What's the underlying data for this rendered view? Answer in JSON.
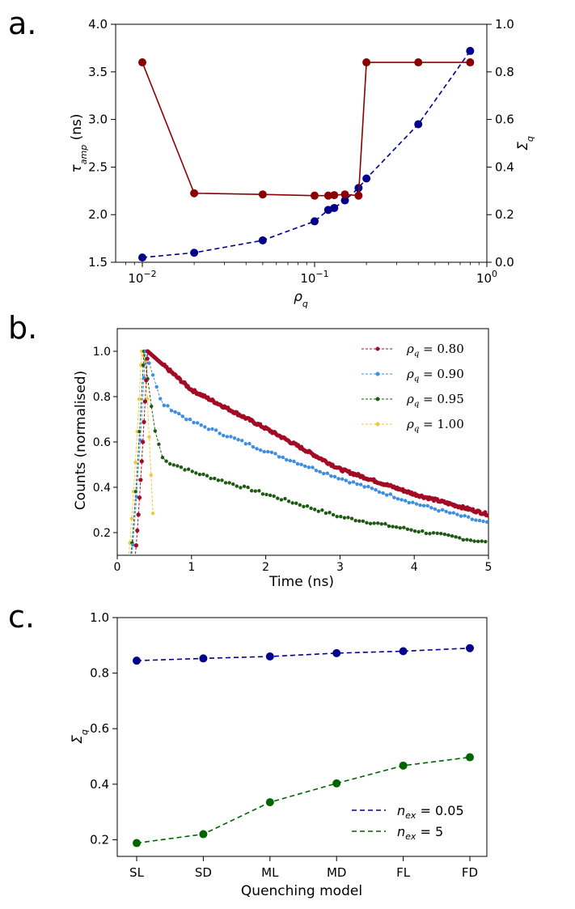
{
  "chart_data": [
    {
      "panel": "a.",
      "type": "line",
      "x_scale": "log",
      "xlim": [
        0.007,
        1.0
      ],
      "xlabel_symbol": "ρ",
      "xlabel_sub": "q",
      "x_ticks": [
        {
          "value": 0.01,
          "base": "10",
          "exp": "−2"
        },
        {
          "value": 0.1,
          "base": "10",
          "exp": "−1"
        },
        {
          "value": 1.0,
          "base": "10",
          "exp": "0"
        }
      ],
      "y_left": {
        "label_symbol": "τ",
        "label_sub": "amp",
        "label_unit": " (ns)",
        "lim": [
          1.5,
          4.0
        ],
        "ticks": [
          "1.5",
          "2.0",
          "2.5",
          "3.0",
          "3.5",
          "4.0"
        ]
      },
      "y_right": {
        "label_symbol": "Σ",
        "label_sub": "q",
        "lim": [
          0.0,
          1.0
        ],
        "ticks": [
          "0.0",
          "0.2",
          "0.4",
          "0.6",
          "0.8",
          "1.0"
        ]
      },
      "series": [
        {
          "name": "tau_amp",
          "axis": "left",
          "style": "dashed",
          "color": "#00008b",
          "x": [
            0.01,
            0.02,
            0.05,
            0.1,
            0.12,
            0.13,
            0.15,
            0.18,
            0.2,
            0.4,
            0.8
          ],
          "y": [
            1.55,
            1.6,
            1.73,
            1.93,
            2.05,
            2.07,
            2.15,
            2.28,
            2.38,
            2.95,
            3.72
          ]
        },
        {
          "name": "sigma_q",
          "axis": "right",
          "style": "solid",
          "color": "#8b0000",
          "x": [
            0.01,
            0.02,
            0.05,
            0.1,
            0.12,
            0.13,
            0.15,
            0.18,
            0.2,
            0.4,
            0.8
          ],
          "y": [
            0.84,
            0.29,
            0.285,
            0.28,
            0.28,
            0.282,
            0.285,
            0.28,
            0.84,
            0.84,
            0.84
          ]
        }
      ]
    },
    {
      "panel": "b.",
      "type": "line",
      "xlabel": "Time (ns)",
      "ylabel": "Counts (normalised)",
      "xlim": [
        0,
        5
      ],
      "ylim": [
        0.1,
        1.1
      ],
      "x_ticks": [
        "0",
        "1",
        "2",
        "3",
        "4",
        "5"
      ],
      "y_ticks": [
        "0.2",
        "0.4",
        "0.6",
        "0.8",
        "1.0"
      ],
      "legend_position": "top-right",
      "series": [
        {
          "name": "0.80",
          "legend_symbol": "ρ",
          "legend_sub": "q",
          "legend_eq": " = 0.80",
          "color": "#a30a24",
          "rise_start": 0.21,
          "peak_t": 0.41,
          "decay_points": [
            [
              0.41,
              1.0
            ],
            [
              1.0,
              0.83
            ],
            [
              2.0,
              0.66
            ],
            [
              3.0,
              0.48
            ],
            [
              4.0,
              0.37
            ],
            [
              5.0,
              0.28
            ]
          ],
          "point_step": 0.015
        },
        {
          "name": "0.90",
          "legend_symbol": "ρ",
          "legend_sub": "q",
          "legend_eq": " = 0.90",
          "color": "#3d8ee0",
          "rise_start": 0.16,
          "peak_t": 0.38,
          "decay_points": [
            [
              0.38,
              1.0
            ],
            [
              0.6,
              0.77
            ],
            [
              1.0,
              0.69
            ],
            [
              2.0,
              0.56
            ],
            [
              3.0,
              0.44
            ],
            [
              4.0,
              0.33
            ],
            [
              5.0,
              0.24
            ]
          ],
          "point_step": 0.05
        },
        {
          "name": "0.95",
          "legend_symbol": "ρ",
          "legend_sub": "q",
          "legend_eq": " = 0.95",
          "color": "#1f5a14",
          "rise_start": 0.15,
          "peak_t": 0.36,
          "decay_points": [
            [
              0.36,
              1.0
            ],
            [
              0.5,
              0.66
            ],
            [
              0.62,
              0.52
            ],
            [
              1.0,
              0.47
            ],
            [
              2.0,
              0.37
            ],
            [
              3.0,
              0.27
            ],
            [
              4.0,
              0.21
            ],
            [
              5.0,
              0.155
            ]
          ],
          "point_step": 0.05
        },
        {
          "name": "1.00",
          "legend_symbol": "ρ",
          "legend_sub": "q",
          "legend_eq": " = 1.00",
          "color": "#f2c838",
          "rise_start": 0.12,
          "peak_t": 0.33,
          "decay_points": [
            [
              0.33,
              1.0
            ],
            [
              0.38,
              0.96
            ],
            [
              0.5,
              0.15
            ]
          ],
          "point_step": 0.025
        }
      ]
    },
    {
      "panel": "c.",
      "type": "line",
      "xlabel": "Quenching model",
      "ylabel_symbol": "Σ",
      "ylabel_sub": "q",
      "categories": [
        "SL",
        "SD",
        "ML",
        "MD",
        "FL",
        "FD"
      ],
      "ylim": [
        0.14,
        1.0
      ],
      "y_ticks": [
        "0.2",
        "0.4",
        "0.6",
        "0.8",
        "1.0"
      ],
      "legend_position": "bottom-right",
      "series": [
        {
          "name": "n_ex = 0.05",
          "legend_symbol": "n",
          "legend_sub": "ex",
          "legend_eq": " = 0.05",
          "color": "#00008b",
          "values": [
            0.845,
            0.853,
            0.86,
            0.872,
            0.879,
            0.89
          ]
        },
        {
          "name": "n_ex = 5",
          "legend_symbol": "n",
          "legend_sub": "ex",
          "legend_eq": " = 5",
          "color": "#006400",
          "values": [
            0.188,
            0.22,
            0.335,
            0.403,
            0.467,
            0.497
          ]
        }
      ]
    }
  ]
}
